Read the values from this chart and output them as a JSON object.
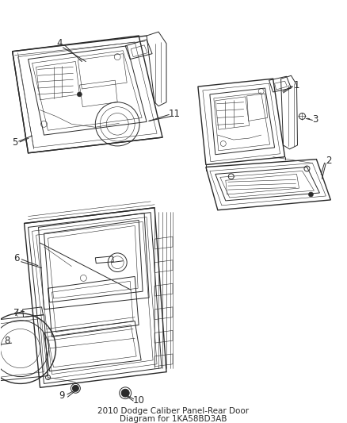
{
  "title_line1": "2010 Dodge Caliber",
  "title_line2": "Panel-Rear Door",
  "title_line3": "Diagram for 1KA58BD3AB",
  "background_color": "#ffffff",
  "fig_width": 4.38,
  "fig_height": 5.33,
  "dpi": 100,
  "line_color": "#2a2a2a",
  "label_fontsize": 8.5,
  "title_fontsize": 7.5
}
